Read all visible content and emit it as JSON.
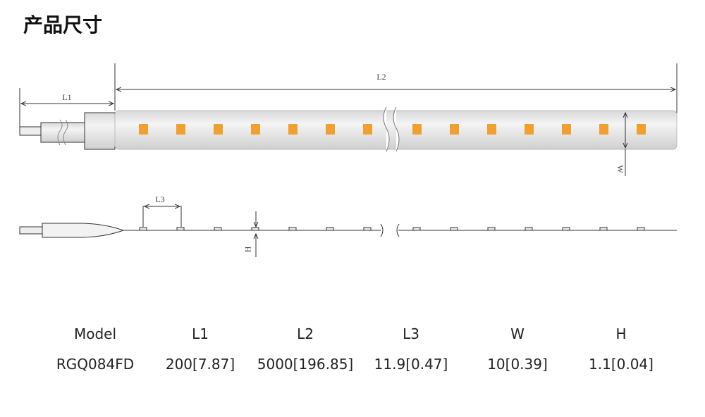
{
  "header": {
    "title": "产品尺寸"
  },
  "drawing": {
    "labels": {
      "l1": "L1",
      "l2": "L2",
      "l3": "L3",
      "w": "W",
      "h": "H"
    }
  },
  "table": {
    "columns": [
      "Model",
      "L1",
      "L2",
      "L3",
      "W",
      "H"
    ],
    "rows": [
      [
        "RGQ084FD",
        "200[7.87]",
        "5000[196.85]",
        "11.9[0.47]",
        "10[0.39]",
        "1.1[0.04]"
      ]
    ]
  }
}
